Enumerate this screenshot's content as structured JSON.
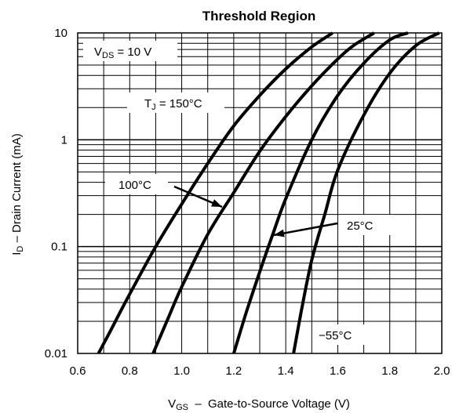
{
  "chart_data": {
    "type": "line",
    "title": "Threshold Region",
    "xlabel": {
      "main": "V",
      "sub": "GS",
      "rest": "  –  Gate-to-Source Voltage (V)"
    },
    "ylabel": {
      "main": "I",
      "sub": "D",
      "rest": " – Drain Current (mA)"
    },
    "xlim": [
      0.6,
      2.0
    ],
    "ylim": [
      0.01,
      10
    ],
    "yscale": "log",
    "grid": true,
    "x_ticks": [
      "0.6",
      "0.8",
      "1.0",
      "1.2",
      "1.4",
      "1.6",
      "1.8",
      "2.0"
    ],
    "x_tick_values": [
      0.6,
      0.8,
      1.0,
      1.2,
      1.4,
      1.6,
      1.8,
      2.0
    ],
    "y_ticks": [
      "0.01",
      "0.1",
      "1",
      "10"
    ],
    "y_tick_values": [
      0.01,
      0.1,
      1,
      10
    ],
    "series": [
      {
        "name": "T J = 150°C",
        "points": [
          [
            0.68,
            0.01
          ],
          [
            0.73,
            0.017
          ],
          [
            0.8,
            0.036
          ],
          [
            0.9,
            0.1
          ],
          [
            1.0,
            0.25
          ],
          [
            1.1,
            0.6
          ],
          [
            1.2,
            1.35
          ],
          [
            1.3,
            2.6
          ],
          [
            1.4,
            4.6
          ],
          [
            1.5,
            7.4
          ],
          [
            1.58,
            10
          ]
        ]
      },
      {
        "name": "100°C",
        "points": [
          [
            0.89,
            0.01
          ],
          [
            0.95,
            0.022
          ],
          [
            1.0,
            0.042
          ],
          [
            1.1,
            0.13
          ],
          [
            1.2,
            0.32
          ],
          [
            1.3,
            0.78
          ],
          [
            1.4,
            1.65
          ],
          [
            1.5,
            3.2
          ],
          [
            1.6,
            5.7
          ],
          [
            1.66,
            7.6
          ],
          [
            1.74,
            10
          ]
        ]
      },
      {
        "name": "25°C",
        "points": [
          [
            1.2,
            0.01
          ],
          [
            1.25,
            0.025
          ],
          [
            1.3,
            0.058
          ],
          [
            1.35,
            0.13
          ],
          [
            1.4,
            0.28
          ],
          [
            1.5,
            1.0
          ],
          [
            1.6,
            2.6
          ],
          [
            1.7,
            5.2
          ],
          [
            1.8,
            8.6
          ],
          [
            1.87,
            10
          ]
        ]
      },
      {
        "name": "−55°C",
        "points": [
          [
            1.43,
            0.01
          ],
          [
            1.46,
            0.025
          ],
          [
            1.5,
            0.075
          ],
          [
            1.55,
            0.2
          ],
          [
            1.6,
            0.52
          ],
          [
            1.7,
            1.7
          ],
          [
            1.8,
            4.2
          ],
          [
            1.9,
            7.6
          ],
          [
            1.99,
            10
          ]
        ]
      }
    ],
    "annotations": {
      "vds": {
        "main": "V",
        "sub": "DS",
        "rest": " = 10 V"
      },
      "tj": {
        "main": "T",
        "sub": "J",
        "rest": " = 150°C"
      },
      "t100": "100°C",
      "t25": "25°C",
      "tm55": "−55°C"
    }
  }
}
